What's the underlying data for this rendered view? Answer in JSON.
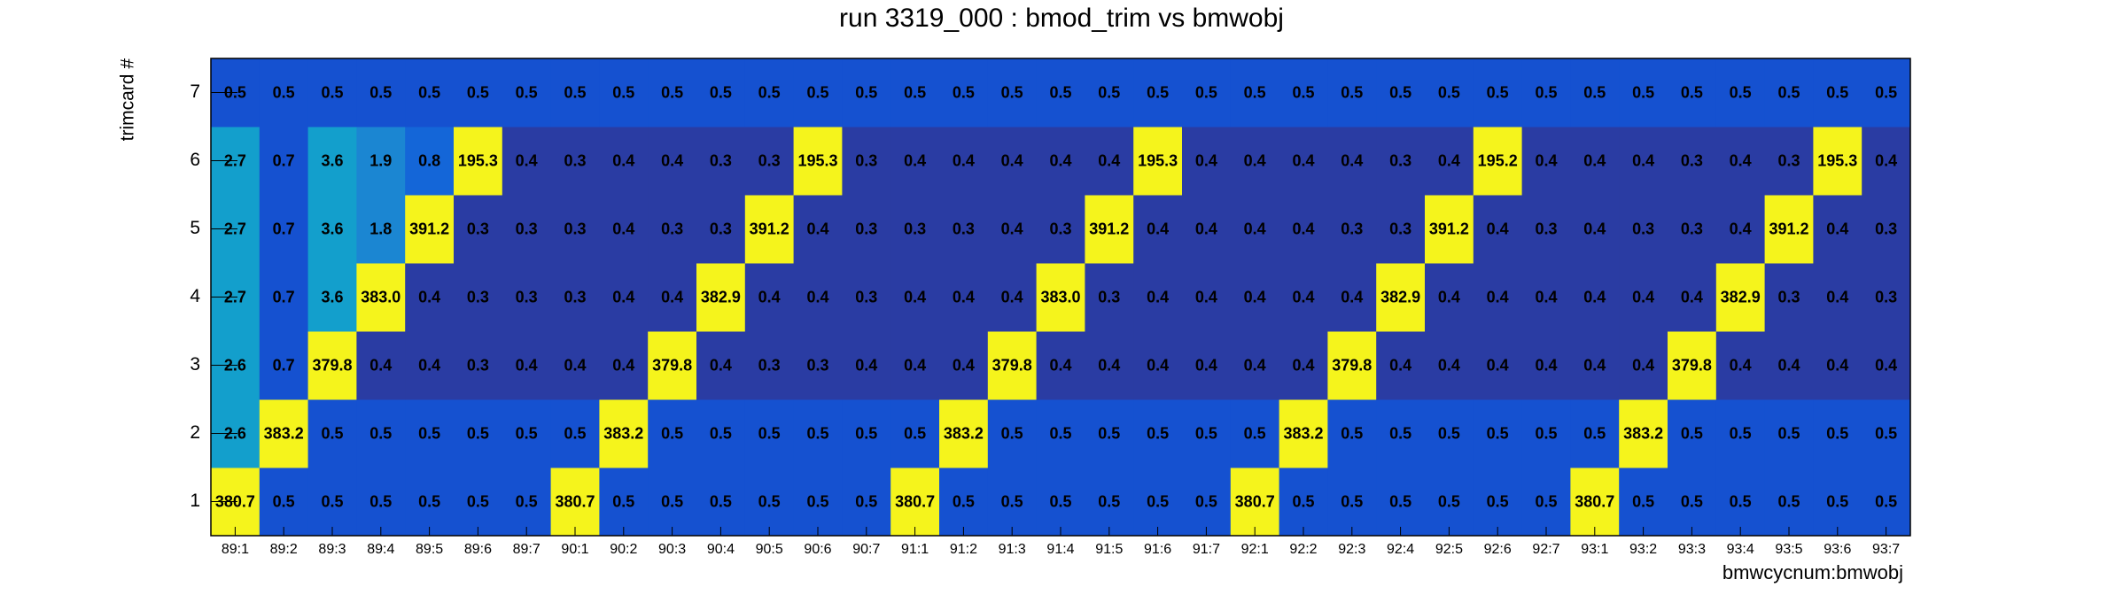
{
  "chart_data": {
    "type": "heatmap",
    "title": "run 3319_000 : bmod_trim vs bmwobj",
    "x_label": "bmwcycnum:bmwobj",
    "y_label": "trimcard #",
    "x_categories": [
      "89:1",
      "89:2",
      "89:3",
      "89:4",
      "89:5",
      "89:6",
      "89:7",
      "90:1",
      "90:2",
      "90:3",
      "90:4",
      "90:5",
      "90:6",
      "90:7",
      "91:1",
      "91:2",
      "91:3",
      "91:4",
      "91:5",
      "91:6",
      "91:7",
      "92:1",
      "92:2",
      "92:3",
      "92:4",
      "92:5",
      "92:6",
      "92:7",
      "93:1",
      "93:2",
      "93:3",
      "93:4",
      "93:5",
      "93:6",
      "93:7"
    ],
    "y_categories": [
      "1",
      "2",
      "3",
      "4",
      "5",
      "6",
      "7"
    ],
    "values": [
      [
        380.7,
        0.5,
        0.5,
        0.5,
        0.5,
        0.5,
        0.5,
        380.7,
        0.5,
        0.5,
        0.5,
        0.5,
        0.5,
        0.5,
        380.7,
        0.5,
        0.5,
        0.5,
        0.5,
        0.5,
        0.5,
        380.7,
        0.5,
        0.5,
        0.5,
        0.5,
        0.5,
        0.5,
        380.7,
        0.5,
        0.5,
        0.5,
        0.5,
        0.5,
        0.5
      ],
      [
        2.6,
        383.2,
        0.5,
        0.5,
        0.5,
        0.5,
        0.5,
        0.5,
        383.2,
        0.5,
        0.5,
        0.5,
        0.5,
        0.5,
        0.5,
        383.2,
        0.5,
        0.5,
        0.5,
        0.5,
        0.5,
        0.5,
        383.2,
        0.5,
        0.5,
        0.5,
        0.5,
        0.5,
        0.5,
        383.2,
        0.5,
        0.5,
        0.5,
        0.5,
        0.5
      ],
      [
        2.6,
        0.7,
        379.8,
        0.4,
        0.4,
        0.3,
        0.4,
        0.4,
        0.4,
        379.8,
        0.4,
        0.3,
        0.3,
        0.4,
        0.4,
        0.4,
        379.8,
        0.4,
        0.4,
        0.4,
        0.4,
        0.4,
        0.4,
        379.8,
        0.4,
        0.4,
        0.4,
        0.4,
        0.4,
        0.4,
        379.8,
        0.4,
        0.4,
        0.4,
        0.4
      ],
      [
        2.7,
        0.7,
        3.6,
        383.0,
        0.4,
        0.3,
        0.3,
        0.3,
        0.4,
        0.4,
        382.9,
        0.4,
        0.4,
        0.3,
        0.4,
        0.4,
        0.4,
        383.0,
        0.3,
        0.4,
        0.4,
        0.4,
        0.4,
        0.4,
        382.9,
        0.4,
        0.4,
        0.4,
        0.4,
        0.4,
        0.4,
        382.9,
        0.3,
        0.4,
        0.3
      ],
      [
        2.7,
        0.7,
        3.6,
        1.8,
        391.2,
        0.3,
        0.3,
        0.3,
        0.4,
        0.3,
        0.3,
        391.2,
        0.4,
        0.3,
        0.3,
        0.3,
        0.4,
        0.3,
        391.2,
        0.4,
        0.4,
        0.4,
        0.4,
        0.3,
        0.3,
        391.2,
        0.4,
        0.3,
        0.4,
        0.3,
        0.3,
        0.4,
        391.2,
        0.4,
        0.3
      ],
      [
        2.7,
        0.7,
        3.6,
        1.9,
        0.8,
        195.3,
        0.4,
        0.3,
        0.4,
        0.4,
        0.3,
        0.3,
        195.3,
        0.3,
        0.4,
        0.4,
        0.4,
        0.4,
        0.4,
        195.3,
        0.4,
        0.4,
        0.4,
        0.4,
        0.3,
        0.4,
        195.2,
        0.4,
        0.4,
        0.4,
        0.3,
        0.4,
        0.3,
        195.3,
        0.4
      ],
      [
        0.5,
        0.5,
        0.5,
        0.5,
        0.5,
        0.5,
        0.5,
        0.5,
        0.5,
        0.5,
        0.5,
        0.5,
        0.5,
        0.5,
        0.5,
        0.5,
        0.5,
        0.5,
        0.5,
        0.5,
        0.5,
        0.5,
        0.5,
        0.5,
        0.5,
        0.5,
        0.5,
        0.5,
        0.5,
        0.5,
        0.5,
        0.5,
        0.5,
        0.5,
        0.5
      ]
    ],
    "value_labels": [
      [
        "380.7",
        "0.5",
        "0.5",
        "0.5",
        "0.5",
        "0.5",
        "0.5",
        "380.7",
        "0.5",
        "0.5",
        "0.5",
        "0.5",
        "0.5",
        "0.5",
        "380.7",
        "0.5",
        "0.5",
        "0.5",
        "0.5",
        "0.5",
        "0.5",
        "380.7",
        "0.5",
        "0.5",
        "0.5",
        "0.5",
        "0.5",
        "0.5",
        "380.7",
        "0.5",
        "0.5",
        "0.5",
        "0.5",
        "0.5",
        "0.5"
      ],
      [
        "2.6",
        "383.2",
        "0.5",
        "0.5",
        "0.5",
        "0.5",
        "0.5",
        "0.5",
        "383.2",
        "0.5",
        "0.5",
        "0.5",
        "0.5",
        "0.5",
        "0.5",
        "383.2",
        "0.5",
        "0.5",
        "0.5",
        "0.5",
        "0.5",
        "0.5",
        "383.2",
        "0.5",
        "0.5",
        "0.5",
        "0.5",
        "0.5",
        "0.5",
        "383.2",
        "0.5",
        "0.5",
        "0.5",
        "0.5",
        "0.5"
      ],
      [
        "2.6",
        "0.7",
        "379.8",
        "0.4",
        "0.4",
        "0.3",
        "0.4",
        "0.4",
        "0.4",
        "379.8",
        "0.4",
        "0.3",
        "0.3",
        "0.4",
        "0.4",
        "0.4",
        "379.8",
        "0.4",
        "0.4",
        "0.4",
        "0.4",
        "0.4",
        "0.4",
        "379.8",
        "0.4",
        "0.4",
        "0.4",
        "0.4",
        "0.4",
        "0.4",
        "379.8",
        "0.4",
        "0.4",
        "0.4",
        "0.4"
      ],
      [
        "2.7",
        "0.7",
        "3.6",
        "383.0",
        "0.4",
        "0.3",
        "0.3",
        "0.3",
        "0.4",
        "0.4",
        "382.9",
        "0.4",
        "0.4",
        "0.3",
        "0.4",
        "0.4",
        "0.4",
        "383.0",
        "0.3",
        "0.4",
        "0.4",
        "0.4",
        "0.4",
        "0.4",
        "382.9",
        "0.4",
        "0.4",
        "0.4",
        "0.4",
        "0.4",
        "0.4",
        "382.9",
        "0.3",
        "0.4",
        "0.3"
      ],
      [
        "2.7",
        "0.7",
        "3.6",
        "1.8",
        "391.2",
        "0.3",
        "0.3",
        "0.3",
        "0.4",
        "0.3",
        "0.3",
        "391.2",
        "0.4",
        "0.3",
        "0.3",
        "0.3",
        "0.4",
        "0.3",
        "391.2",
        "0.4",
        "0.4",
        "0.4",
        "0.4",
        "0.3",
        "0.3",
        "391.2",
        "0.4",
        "0.3",
        "0.4",
        "0.3",
        "0.3",
        "0.4",
        "391.2",
        "0.4",
        "0.3"
      ],
      [
        "2.7",
        "0.7",
        "3.6",
        "1.9",
        "0.8",
        "195.3",
        "0.4",
        "0.3",
        "0.4",
        "0.4",
        "0.3",
        "0.3",
        "195.3",
        "0.3",
        "0.4",
        "0.4",
        "0.4",
        "0.4",
        "0.4",
        "195.3",
        "0.4",
        "0.4",
        "0.4",
        "0.4",
        "0.3",
        "0.4",
        "195.2",
        "0.4",
        "0.4",
        "0.4",
        "0.3",
        "0.4",
        "0.3",
        "195.3",
        "0.4"
      ],
      [
        "0.5",
        "0.5",
        "0.5",
        "0.5",
        "0.5",
        "0.5",
        "0.5",
        "0.5",
        "0.5",
        "0.5",
        "0.5",
        "0.5",
        "0.5",
        "0.5",
        "0.5",
        "0.5",
        "0.5",
        "0.5",
        "0.5",
        "0.5",
        "0.5",
        "0.5",
        "0.5",
        "0.5",
        "0.5",
        "0.5",
        "0.5",
        "0.5",
        "0.5",
        "0.5",
        "0.5",
        "0.5",
        "0.5",
        "0.5",
        "0.5"
      ]
    ]
  }
}
